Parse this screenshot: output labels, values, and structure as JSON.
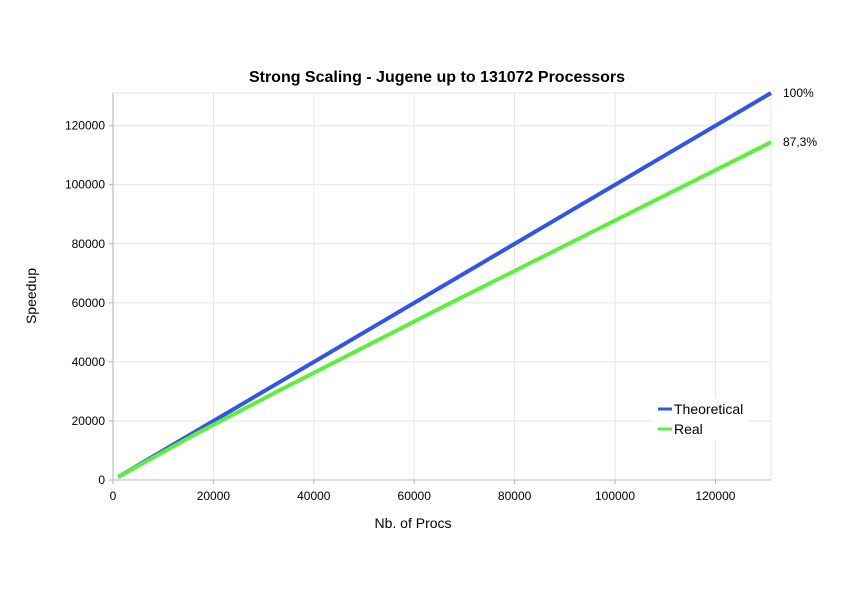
{
  "chart_data": {
    "type": "line",
    "title": "Strong Scaling - Jugene up to 131072 Processors",
    "xlabel": "Nb. of Procs",
    "ylabel": "Speedup",
    "xlim": [
      0,
      131072
    ],
    "ylim": [
      0,
      131072
    ],
    "xticks": [
      0,
      20000,
      40000,
      60000,
      80000,
      100000,
      120000
    ],
    "yticks": [
      0,
      20000,
      40000,
      60000,
      80000,
      100000,
      120000
    ],
    "grid": true,
    "legend_position": "bottom-right",
    "series": [
      {
        "name": "Theoretical",
        "color": "#3155e8",
        "x": [
          1024,
          16384,
          32768,
          65536,
          131072
        ],
        "y": [
          1024,
          16384,
          32768,
          65536,
          131072
        ]
      },
      {
        "name": "Real",
        "color": "#5cf03c",
        "x": [
          1024,
          16384,
          32768,
          65536,
          131072
        ],
        "y": [
          1024,
          15500,
          30000,
          58500,
          114400
        ]
      }
    ],
    "annotations": [
      {
        "text": "100%",
        "series": 0
      },
      {
        "text": "87,3%",
        "series": 1
      }
    ]
  }
}
